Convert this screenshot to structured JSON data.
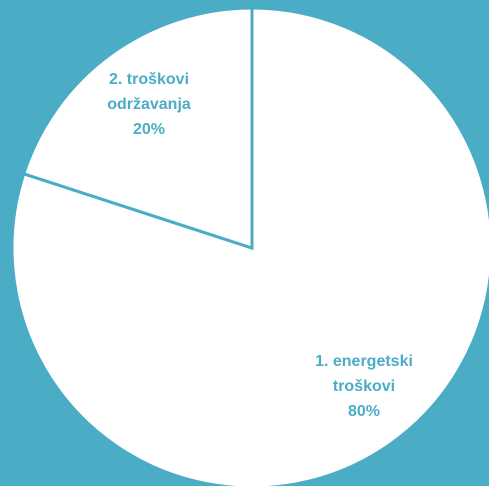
{
  "chart_data": {
    "type": "pie",
    "categories": [
      "1. energetski troškovi",
      "2. troškovi održavanja"
    ],
    "values": [
      80,
      20
    ],
    "labels": [
      [
        "1. energetski",
        "troškovi",
        "80%"
      ],
      [
        "2. troškovi",
        "održavanja",
        "20%"
      ]
    ],
    "title": "",
    "legend": "none"
  },
  "colors": {
    "background": "#4bacc6",
    "slice_fill": "#ffffff",
    "label": "#4bacc6"
  }
}
